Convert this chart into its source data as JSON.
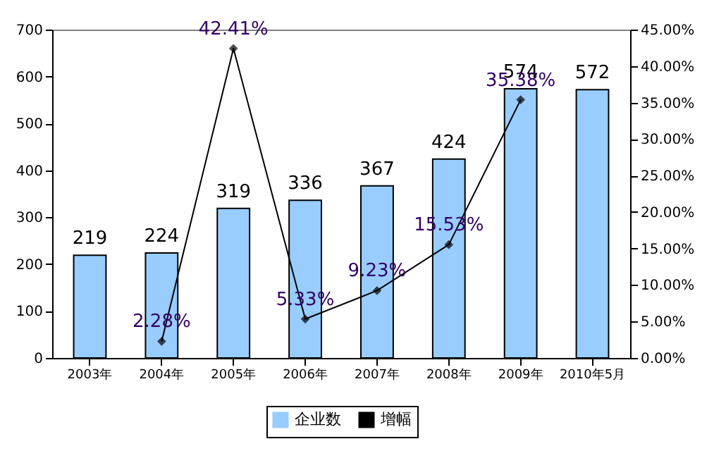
{
  "chart_data": {
    "type": "bar",
    "categories": [
      "2003年",
      "2004年",
      "2005年",
      "2006年",
      "2007年",
      "2008年",
      "2009年",
      "2010年5月"
    ],
    "series": [
      {
        "name": "企业数",
        "color": "#99ccff",
        "values": [
          219,
          224,
          319,
          336,
          367,
          424,
          574,
          572
        ],
        "value_labels": [
          "219",
          "224",
          "319",
          "336",
          "367",
          "424",
          "574",
          "572"
        ]
      },
      {
        "name": "增幅",
        "type": "line",
        "axis": "y2",
        "color": "#000000",
        "values": [
          null,
          2.28,
          42.41,
          5.33,
          9.23,
          15.53,
          35.38,
          null
        ],
        "value_labels": [
          null,
          "2.28%",
          "42.41%",
          "5.33%",
          "9.23%",
          "15.53%",
          "35.38%",
          null
        ]
      }
    ],
    "ylim": [
      0,
      700
    ],
    "yticks": [
      0,
      100,
      200,
      300,
      400,
      500,
      600,
      700
    ],
    "y2lim": [
      0,
      45
    ],
    "y2ticks": [
      {
        "value": 0,
        "label": "0.00%"
      },
      {
        "value": 5,
        "label": "5.00%"
      },
      {
        "value": 10,
        "label": "10.00%"
      },
      {
        "value": 15,
        "label": "15.00%"
      },
      {
        "value": 20,
        "label": "20.00%"
      },
      {
        "value": 25,
        "label": "25.00%"
      },
      {
        "value": 30,
        "label": "30.00%"
      },
      {
        "value": 35,
        "label": "35.00%"
      },
      {
        "value": 40,
        "label": "40.00%"
      },
      {
        "value": 45,
        "label": "45.00%"
      }
    ],
    "grid": false,
    "legend": "bottom",
    "marker": "diamond",
    "line_style": "solid"
  }
}
